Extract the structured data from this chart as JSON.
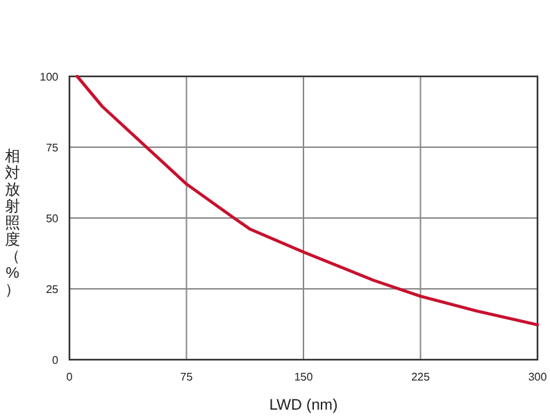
{
  "chart_data": {
    "type": "line",
    "xlabel": "LWD (nm)",
    "ylabel": "相対放射照度（%）",
    "xlim": [
      0,
      300
    ],
    "ylim": [
      0,
      100
    ],
    "xticks": [
      0,
      75,
      150,
      225,
      300
    ],
    "yticks": [
      0,
      25,
      50,
      75,
      100
    ],
    "grid": true,
    "series": [
      {
        "color": "#c8102e",
        "x": [
          5,
          21,
          44.5,
          75,
          105,
          116,
          150,
          195,
          225,
          261,
          300
        ],
        "values": [
          100,
          89.4,
          77.5,
          62,
          50.2,
          46,
          38,
          28,
          22.4,
          17.2,
          12.3
        ]
      }
    ]
  }
}
